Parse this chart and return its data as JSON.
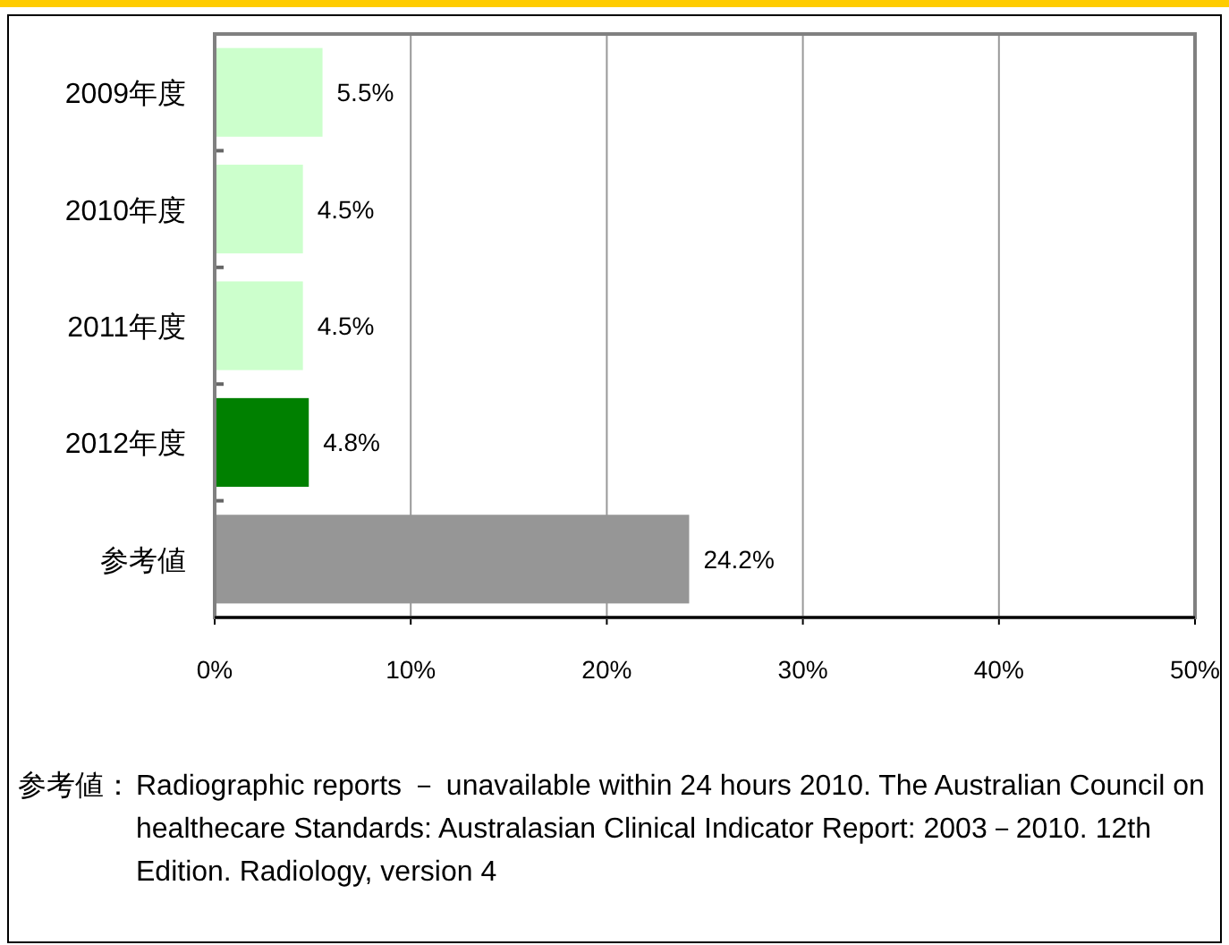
{
  "chart_data": {
    "type": "bar",
    "orientation": "horizontal",
    "categories": [
      "2009年度",
      "2010年度",
      "2011年度",
      "2012年度",
      "参考値"
    ],
    "values": [
      5.5,
      4.5,
      4.5,
      4.8,
      24.2
    ],
    "colors": [
      "#ccffcc",
      "#ccffcc",
      "#ccffcc",
      "#008000",
      "#969696"
    ],
    "value_labels": [
      "5.5%",
      "4.5%",
      "4.5%",
      "4.8%",
      "24.2%"
    ],
    "xlim": [
      0,
      50
    ],
    "xticks": [
      {
        "value": 0,
        "label": "0%"
      },
      {
        "value": 10,
        "label": "10%"
      },
      {
        "value": 20,
        "label": "20%"
      },
      {
        "value": 30,
        "label": "30%"
      },
      {
        "value": 40,
        "label": "40%"
      },
      {
        "value": 50,
        "label": "50%"
      }
    ],
    "grid": "x",
    "annotations": [
      "参考値：",
      "Radiographic reports － unavailable within 24 hours 2010. The Australian Council on healthecare Standards: Australasian Clinical Indicator Report: 2003－2010. 12th Edition. Radiology, version 4"
    ]
  }
}
